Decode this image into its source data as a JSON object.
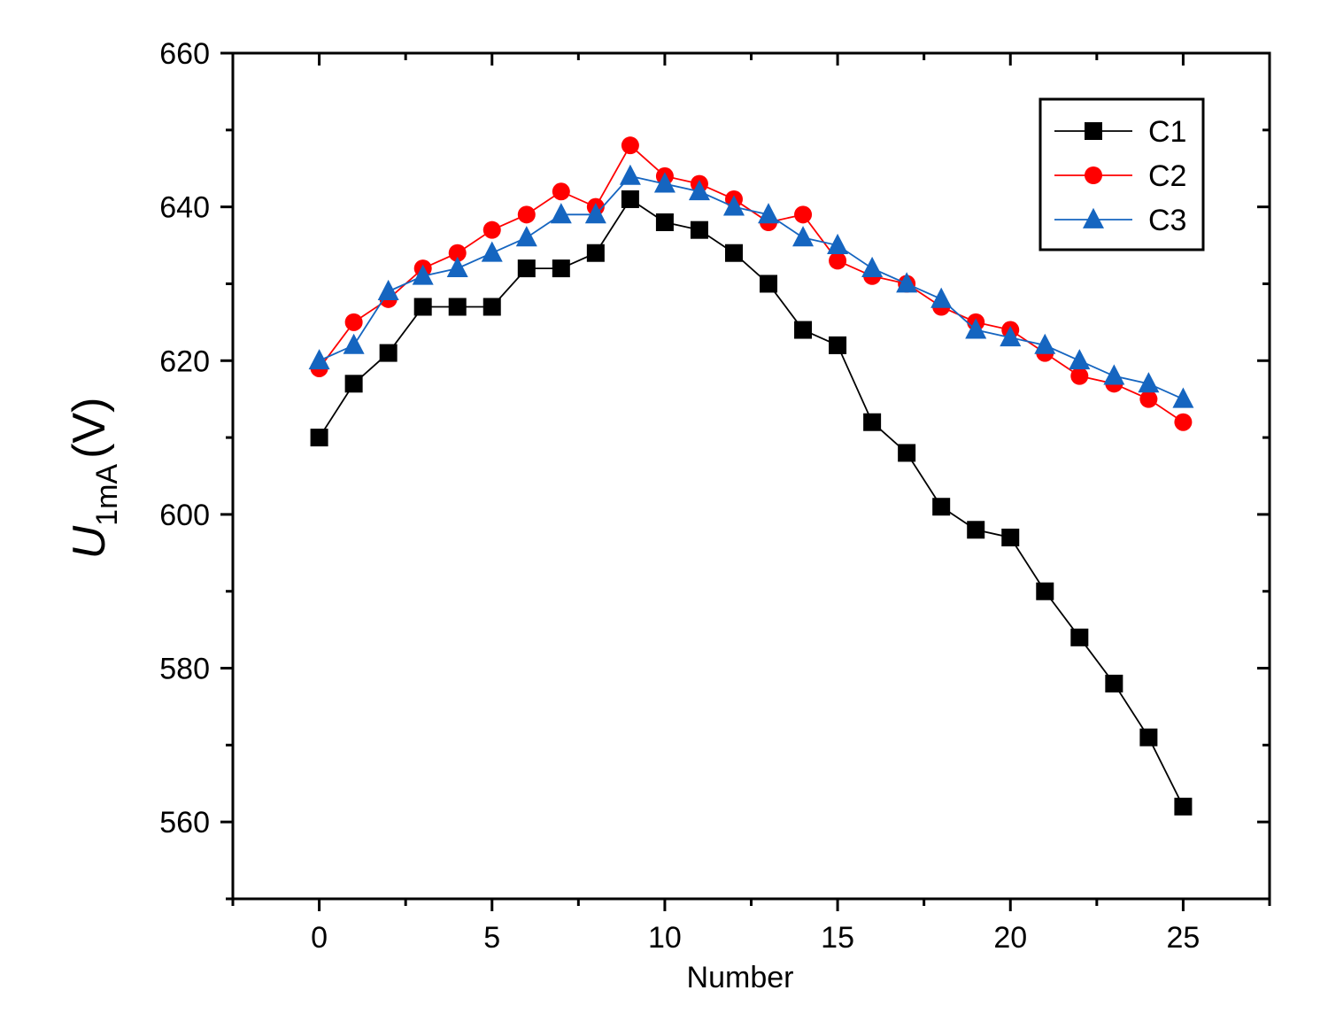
{
  "chart_data": {
    "type": "line",
    "x": [
      0,
      1,
      2,
      3,
      4,
      5,
      6,
      7,
      8,
      9,
      10,
      11,
      12,
      13,
      14,
      15,
      16,
      17,
      18,
      19,
      20,
      21,
      22,
      23,
      24,
      25
    ],
    "series": [
      {
        "name": "C1",
        "color": "#000000",
        "marker": "square",
        "values": [
          610,
          617,
          621,
          627,
          627,
          627,
          632,
          632,
          634,
          641,
          638,
          637,
          634,
          630,
          624,
          622,
          612,
          608,
          601,
          598,
          597,
          590,
          584,
          578,
          571,
          562
        ]
      },
      {
        "name": "C2",
        "color": "#ff0000",
        "marker": "circle",
        "values": [
          619,
          625,
          628,
          632,
          634,
          637,
          639,
          642,
          640,
          648,
          644,
          643,
          641,
          638,
          639,
          633,
          631,
          630,
          627,
          625,
          624,
          621,
          618,
          617,
          615,
          612
        ]
      },
      {
        "name": "C3",
        "color": "#1565c0",
        "marker": "triangle",
        "values": [
          620,
          622,
          629,
          631,
          632,
          634,
          636,
          639,
          639,
          644,
          643,
          642,
          640,
          639,
          636,
          635,
          632,
          630,
          628,
          624,
          623,
          622,
          620,
          618,
          617,
          615
        ]
      }
    ],
    "title": "",
    "xlabel": "Number",
    "ylabel": {
      "main": "U",
      "subscript": "1mA",
      "unit": "(V)"
    },
    "xlim": [
      -2.5,
      27.5
    ],
    "ylim": [
      550,
      660
    ],
    "xticks": [
      0,
      5,
      10,
      15,
      20,
      25
    ],
    "yticks": [
      560,
      580,
      600,
      620,
      640,
      660
    ],
    "legend_position": "top-right",
    "grid": false
  }
}
